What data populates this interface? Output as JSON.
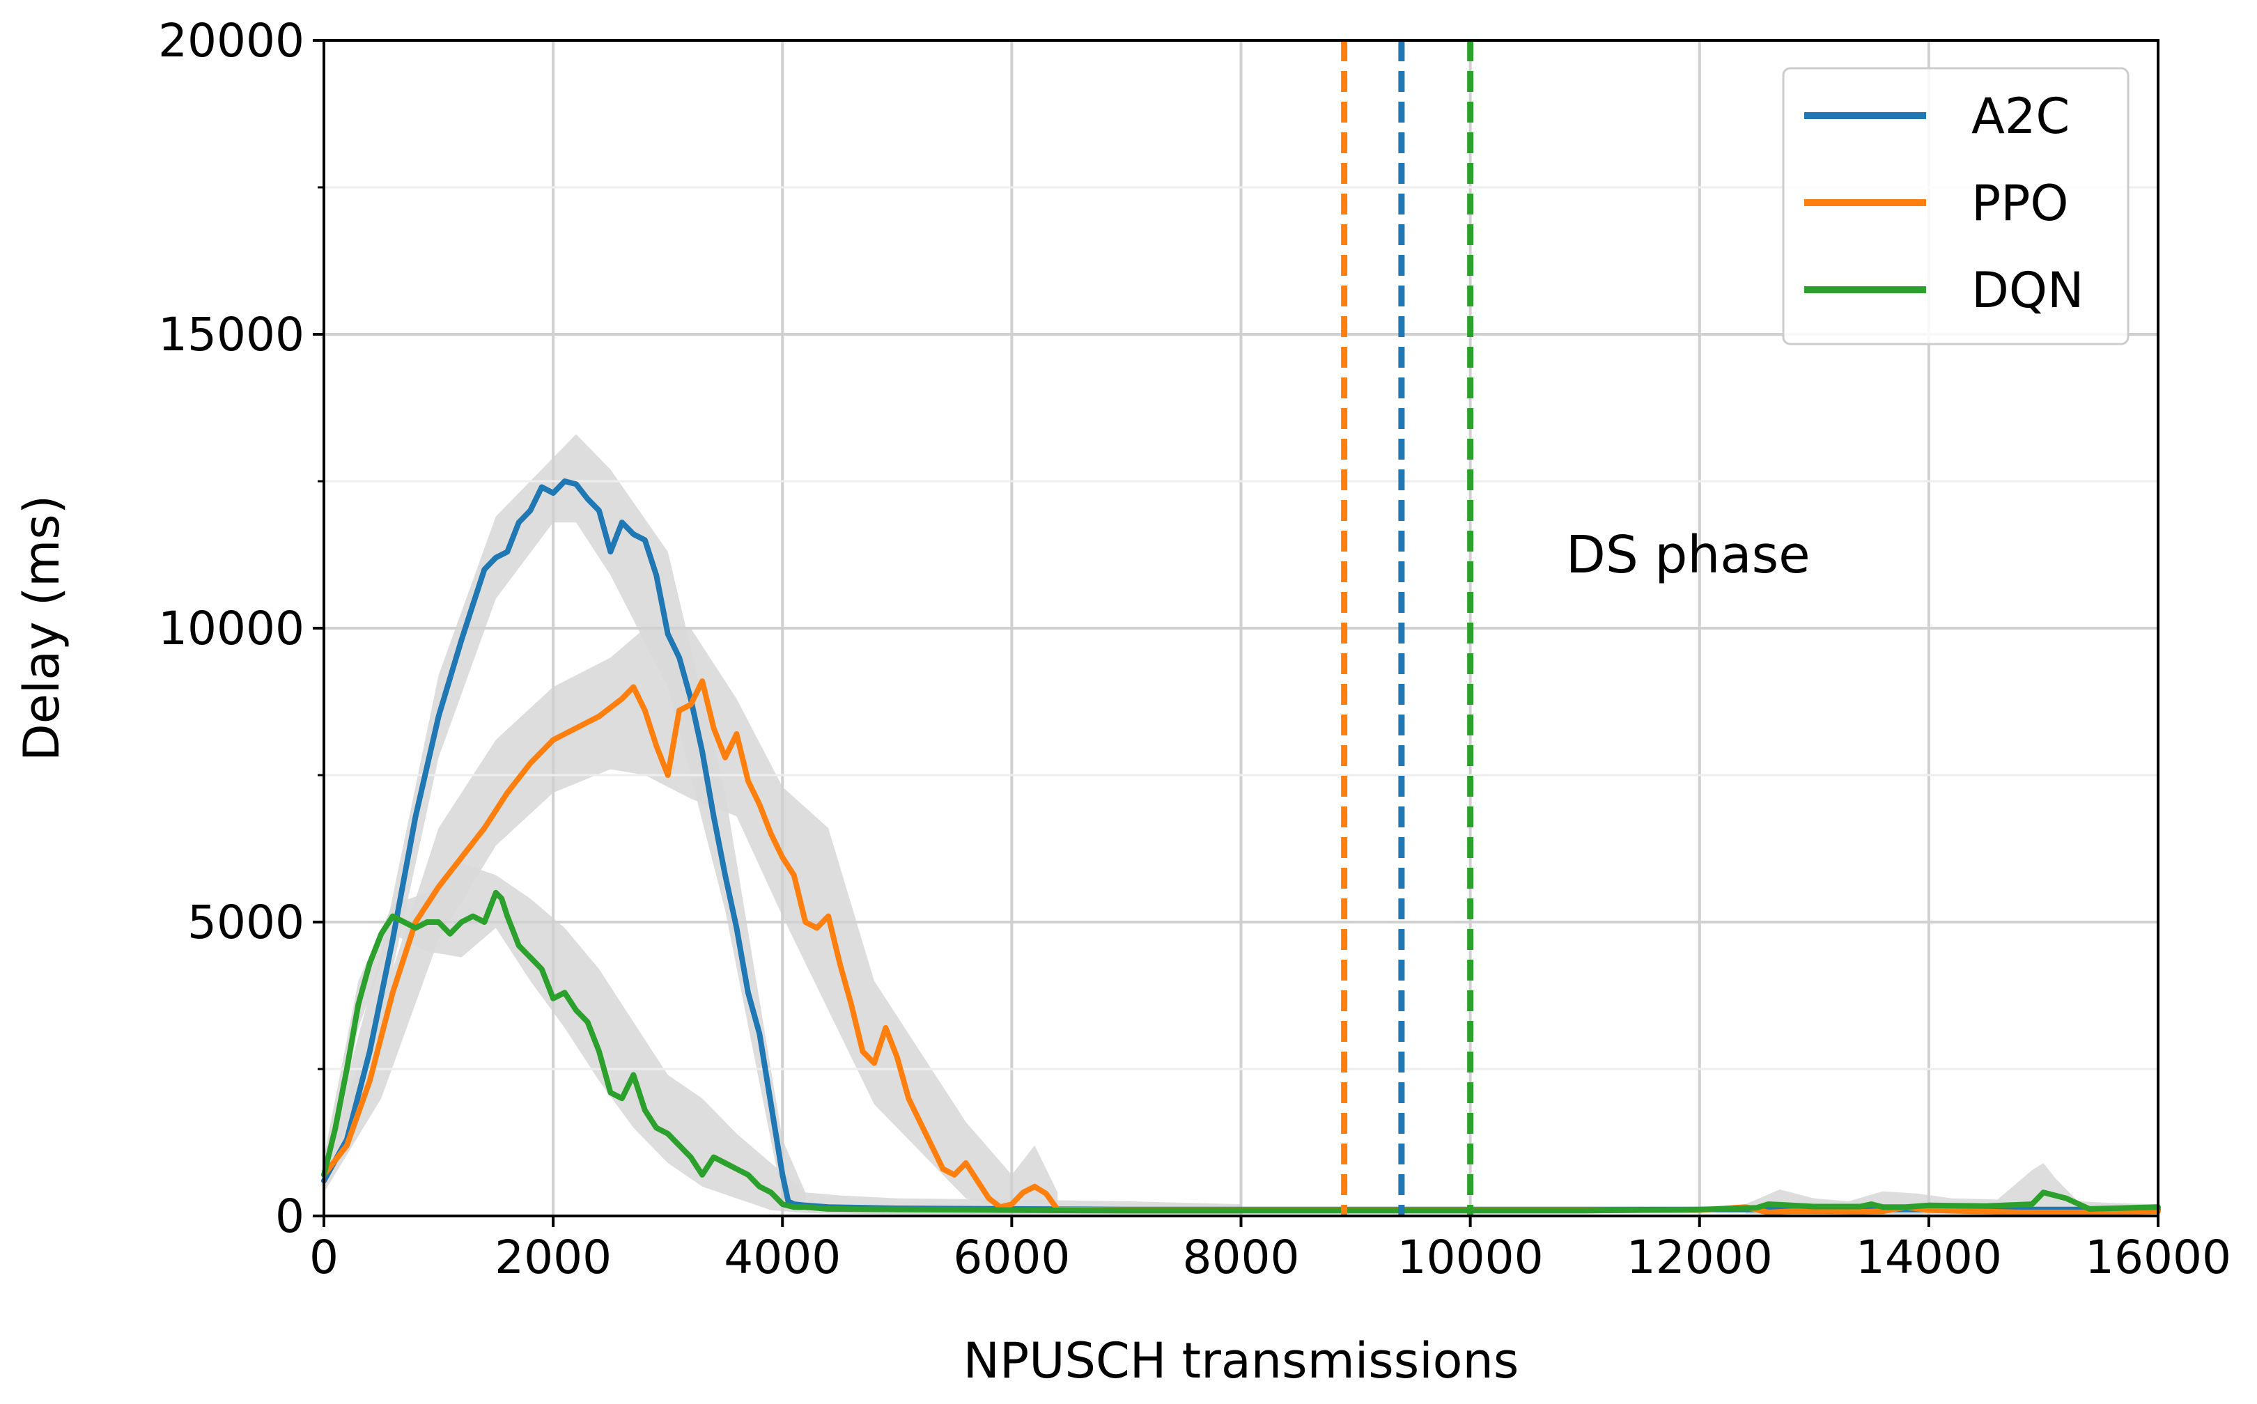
{
  "chart_data": {
    "type": "line",
    "title": "",
    "xlabel": "NPUSCH transmissions",
    "ylabel": "Delay (ms)",
    "xlim": [
      0,
      16000
    ],
    "ylim": [
      0,
      20000
    ],
    "xticks": [
      0,
      2000,
      4000,
      6000,
      8000,
      10000,
      12000,
      14000,
      16000
    ],
    "yticks": [
      0,
      5000,
      10000,
      15000,
      20000
    ],
    "yminor": [
      2500,
      7500,
      12500,
      17500
    ],
    "grid": true,
    "legend_position": "top-right",
    "annotation": "DS phase",
    "colors": {
      "A2C": "#1f77b4",
      "PPO": "#ff7f0e",
      "DQN": "#2ca02c",
      "band": "#d9d9d9"
    },
    "series": [
      {
        "name": "A2C",
        "x": [
          0,
          200,
          400,
          600,
          800,
          1000,
          1200,
          1300,
          1400,
          1500,
          1600,
          1700,
          1800,
          1900,
          2000,
          2100,
          2200,
          2300,
          2400,
          2500,
          2600,
          2700,
          2800,
          2900,
          3000,
          3100,
          3200,
          3300,
          3400,
          3500,
          3600,
          3700,
          3800,
          3900,
          4000,
          4050,
          4100,
          4200,
          4400,
          5000,
          6000,
          7000,
          8000,
          9000,
          10000,
          11000,
          12000,
          13000,
          14000,
          15000,
          16000
        ],
        "y": [
          600,
          1300,
          2800,
          4700,
          6800,
          8500,
          9800,
          10400,
          11000,
          11200,
          11300,
          11800,
          12000,
          12400,
          12300,
          12500,
          12450,
          12200,
          12000,
          11300,
          11800,
          11600,
          11500,
          10900,
          9900,
          9500,
          8800,
          7900,
          6800,
          5800,
          4900,
          3800,
          3100,
          1900,
          700,
          250,
          200,
          180,
          150,
          130,
          120,
          110,
          110,
          110,
          110,
          110,
          110,
          110,
          110,
          110,
          110
        ]
      },
      {
        "name": "PPO",
        "x": [
          0,
          200,
          400,
          600,
          800,
          1000,
          1200,
          1400,
          1600,
          1800,
          2000,
          2200,
          2400,
          2600,
          2700,
          2800,
          2900,
          3000,
          3100,
          3200,
          3300,
          3400,
          3500,
          3600,
          3700,
          3800,
          3900,
          4000,
          4100,
          4200,
          4300,
          4400,
          4500,
          4600,
          4700,
          4800,
          4900,
          5000,
          5100,
          5200,
          5300,
          5400,
          5500,
          5600,
          5700,
          5800,
          5900,
          6000,
          6100,
          6200,
          6300,
          6400,
          7000,
          8000,
          9000,
          10000,
          11000,
          12000,
          12400,
          12600,
          12800,
          13000,
          13400,
          13600,
          13800,
          14000,
          14400,
          14800,
          15200,
          15600,
          16000
        ],
        "y": [
          700,
          1200,
          2300,
          3800,
          5000,
          5600,
          6100,
          6600,
          7200,
          7700,
          8100,
          8300,
          8500,
          8800,
          9000,
          8600,
          8000,
          7500,
          8600,
          8700,
          9100,
          8300,
          7800,
          8200,
          7400,
          7000,
          6500,
          6100,
          5800,
          5000,
          4900,
          5100,
          4300,
          3600,
          2800,
          2600,
          3200,
          2700,
          2000,
          1600,
          1200,
          800,
          700,
          900,
          600,
          300,
          150,
          200,
          400,
          500,
          380,
          110,
          100,
          100,
          100,
          100,
          100,
          100,
          150,
          60,
          80,
          80,
          70,
          80,
          150,
          100,
          80,
          60,
          60,
          60,
          80
        ]
      },
      {
        "name": "DQN",
        "x": [
          0,
          100,
          200,
          300,
          400,
          500,
          600,
          700,
          800,
          900,
          1000,
          1100,
          1200,
          1300,
          1400,
          1500,
          1550,
          1600,
          1700,
          1800,
          1900,
          2000,
          2100,
          2200,
          2300,
          2400,
          2500,
          2600,
          2700,
          2800,
          2900,
          3000,
          3100,
          3200,
          3300,
          3400,
          3500,
          3600,
          3700,
          3800,
          3900,
          4000,
          4100,
          4200,
          4400,
          5000,
          6000,
          7000,
          8000,
          9000,
          10000,
          11000,
          12000,
          12500,
          12600,
          12800,
          13000,
          13400,
          13500,
          13600,
          13800,
          14000,
          14500,
          14900,
          15000,
          15100,
          15200,
          15400,
          15600,
          16000
        ],
        "y": [
          700,
          1500,
          2500,
          3600,
          4300,
          4800,
          5100,
          5000,
          4900,
          5000,
          5000,
          4800,
          5000,
          5100,
          5000,
          5500,
          5400,
          5100,
          4600,
          4400,
          4200,
          3700,
          3800,
          3500,
          3300,
          2800,
          2100,
          2000,
          2400,
          1800,
          1500,
          1400,
          1200,
          1000,
          700,
          1000,
          900,
          800,
          700,
          500,
          400,
          200,
          150,
          150,
          120,
          110,
          100,
          90,
          90,
          90,
          90,
          90,
          110,
          140,
          200,
          180,
          160,
          160,
          200,
          150,
          150,
          180,
          170,
          200,
          400,
          350,
          300,
          120,
          130,
          150
        ]
      }
    ],
    "bands": [
      {
        "name": "A2C",
        "x": [
          0,
          500,
          1000,
          1500,
          2000,
          2200,
          2500,
          3000,
          3500,
          4000,
          4200
        ],
        "upper": [
          900,
          4500,
          9200,
          11900,
          12900,
          13300,
          12700,
          11300,
          7200,
          1300,
          400
        ],
        "lower": [
          400,
          3300,
          7800,
          10500,
          11800,
          11800,
          10900,
          9000,
          5200,
          300,
          100
        ]
      },
      {
        "name": "PPO",
        "x": [
          0,
          500,
          1000,
          1500,
          2000,
          2500,
          2800,
          3200,
          3600,
          4000,
          4400,
          4800,
          5200,
          5600,
          6000,
          6200,
          6400
        ],
        "upper": [
          1000,
          3600,
          6600,
          8100,
          9000,
          9500,
          10000,
          10000,
          8800,
          7300,
          6600,
          4000,
          2800,
          1600,
          700,
          1200,
          400
        ],
        "lower": [
          400,
          2000,
          4700,
          6300,
          7200,
          7600,
          7500,
          7100,
          6800,
          5100,
          3500,
          1900,
          1100,
          300,
          100,
          150,
          80
        ]
      },
      {
        "name": "DQN",
        "x": [
          0,
          300,
          600,
          900,
          1200,
          1500,
          1800,
          2100,
          2400,
          2700,
          3000,
          3300,
          3600,
          3900,
          4200,
          4500,
          5000,
          6000,
          7000,
          8000
        ],
        "upper": [
          1000,
          4000,
          5300,
          5500,
          6000,
          5800,
          5400,
          4900,
          4200,
          3300,
          2400,
          2000,
          1400,
          900,
          400,
          350,
          300,
          280,
          250,
          200
        ],
        "lower": [
          400,
          3200,
          4800,
          4500,
          4400,
          4900,
          4000,
          3200,
          2300,
          1500,
          900,
          500,
          300,
          100,
          50,
          40,
          30,
          30,
          30,
          30
        ]
      },
      {
        "name": "DQN-late",
        "x": [
          12400,
          12700,
          13000,
          13300,
          13600,
          13900,
          14200,
          14600,
          14900,
          15000,
          15100,
          15300,
          15600,
          16000
        ],
        "upper": [
          200,
          450,
          300,
          250,
          420,
          380,
          300,
          280,
          780,
          900,
          650,
          250,
          220,
          200
        ],
        "lower": [
          40,
          30,
          30,
          30,
          30,
          30,
          30,
          30,
          60,
          100,
          80,
          40,
          30,
          30
        ]
      }
    ],
    "vlines": [
      {
        "x": 8900,
        "series": "PPO"
      },
      {
        "x": 9400,
        "series": "A2C"
      },
      {
        "x": 10000,
        "series": "DQN"
      }
    ]
  }
}
